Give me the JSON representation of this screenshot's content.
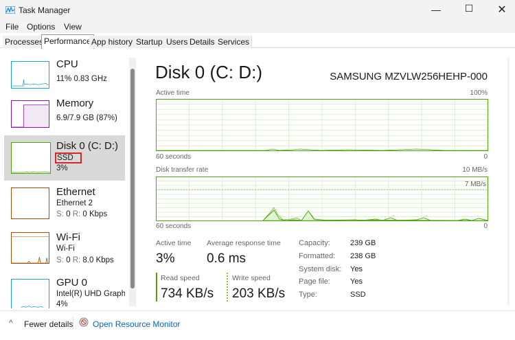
{
  "window": {
    "title": "Task Manager",
    "icons": [
      "app-icon",
      "minimize-icon",
      "maximize-icon",
      "close-icon"
    ]
  },
  "menu": [
    "File",
    "Options",
    "View"
  ],
  "tabs": [
    "Processes",
    "Performance",
    "App history",
    "Startup",
    "Users",
    "Details",
    "Services"
  ],
  "active_tab": "Performance",
  "sidebar": {
    "items": [
      {
        "name": "CPU",
        "line1": "11%  0.83 GHz",
        "color": "#1aa3c9"
      },
      {
        "name": "Memory",
        "line1": "6.9/7.9 GB (87%)",
        "color": "#8b12ae"
      },
      {
        "name": "Disk 0 (C: D:)",
        "line1": "SSD",
        "line2": "3%",
        "color": "#4da60c",
        "selected": true
      },
      {
        "name": "Ethernet",
        "line1": "Ethernet 2",
        "s_label": "S:",
        "s_val": "0",
        "r_label": "R:",
        "r_val": "0 Kbps",
        "color": "#a74f01"
      },
      {
        "name": "Wi-Fi",
        "line1": "Wi-Fi",
        "s_label": "S:",
        "s_val": "0",
        "r_label": "R:",
        "r_val": "8.0 Kbps",
        "color": "#a74f01"
      },
      {
        "name": "GPU 0",
        "line1": "Intel(R) UHD Graphic",
        "line2": "4%",
        "color": "#1aa3c9"
      }
    ]
  },
  "main": {
    "title": "Disk 0 (C: D:)",
    "model": "SAMSUNG MZVLW256HEHP-000",
    "graph1": {
      "label": "Active time",
      "max": "100%",
      "xleft": "60 seconds",
      "xright": "0"
    },
    "graph2": {
      "label": "Disk transfer rate",
      "max": "10 MB/s",
      "line": "7 MB/s",
      "xleft": "60 seconds",
      "xright": "0"
    },
    "stats": {
      "active_time_label": "Active time",
      "active_time": "3%",
      "avg_resp_label": "Average response time",
      "avg_resp": "0.6 ms",
      "read_label": "Read speed",
      "read": "734 KB/s",
      "write_label": "Write speed",
      "write": "203 KB/s"
    },
    "props": [
      {
        "k": "Capacity:",
        "v": "239 GB"
      },
      {
        "k": "Formatted:",
        "v": "238 GB"
      },
      {
        "k": "System disk:",
        "v": "Yes"
      },
      {
        "k": "Page file:",
        "v": "Yes"
      },
      {
        "k": "Type:",
        "v": "SSD"
      }
    ]
  },
  "footer": {
    "fewer": "Fewer details",
    "monitor": "Open Resource Monitor"
  },
  "colors": {
    "disk": "#4da60c",
    "highlight": "#d9252a",
    "link": "#0067c0"
  }
}
